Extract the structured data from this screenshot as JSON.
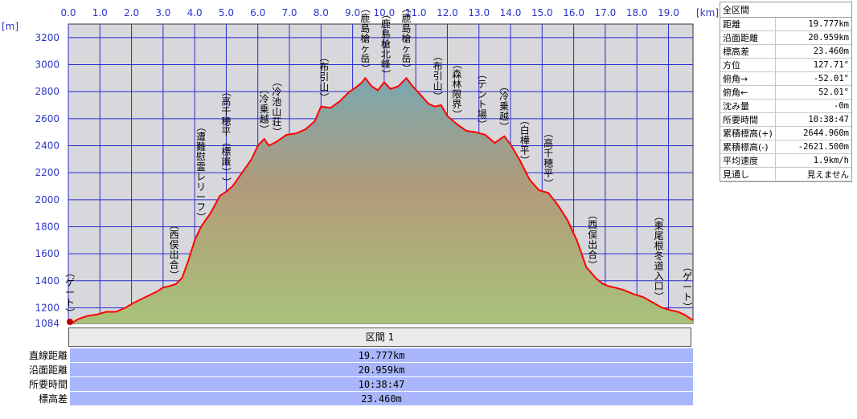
{
  "chart_data": {
    "type": "area",
    "x_unit": "[km]",
    "y_unit": "[m]",
    "xlim": [
      0,
      19.777
    ],
    "ylim": [
      1084,
      3300
    ],
    "x_ticks": [
      "0.0",
      "1.0",
      "2.0",
      "3.0",
      "4.0",
      "5.0",
      "6.0",
      "7.0",
      "8.0",
      "9.0",
      "10.0",
      "11.0",
      "12.0",
      "13.0",
      "14.0",
      "15.0",
      "16.0",
      "17.0",
      "18.0",
      "19.0"
    ],
    "y_ticks": [
      "1084",
      "1200",
      "1400",
      "1600",
      "1800",
      "2000",
      "2200",
      "2400",
      "2600",
      "2800",
      "3000",
      "3200"
    ],
    "profile": [
      [
        0.0,
        1100
      ],
      [
        0.1,
        1084
      ],
      [
        0.3,
        1115
      ],
      [
        0.6,
        1140
      ],
      [
        0.9,
        1150
      ],
      [
        1.2,
        1170
      ],
      [
        1.5,
        1170
      ],
      [
        1.8,
        1200
      ],
      [
        2.1,
        1240
      ],
      [
        2.4,
        1275
      ],
      [
        2.8,
        1320
      ],
      [
        3.0,
        1350
      ],
      [
        3.2,
        1360
      ],
      [
        3.4,
        1375
      ],
      [
        3.6,
        1420
      ],
      [
        3.8,
        1550
      ],
      [
        4.0,
        1700
      ],
      [
        4.2,
        1800
      ],
      [
        4.5,
        1900
      ],
      [
        4.8,
        2030
      ],
      [
        5.0,
        2060
      ],
      [
        5.2,
        2100
      ],
      [
        5.5,
        2200
      ],
      [
        5.8,
        2300
      ],
      [
        6.0,
        2400
      ],
      [
        6.2,
        2450
      ],
      [
        6.35,
        2400
      ],
      [
        6.6,
        2430
      ],
      [
        6.9,
        2480
      ],
      [
        7.2,
        2490
      ],
      [
        7.5,
        2520
      ],
      [
        7.8,
        2580
      ],
      [
        8.0,
        2690
      ],
      [
        8.3,
        2680
      ],
      [
        8.6,
        2730
      ],
      [
        8.9,
        2800
      ],
      [
        9.1,
        2830
      ],
      [
        9.3,
        2870
      ],
      [
        9.4,
        2900
      ],
      [
        9.6,
        2840
      ],
      [
        9.8,
        2810
      ],
      [
        10.0,
        2870
      ],
      [
        10.2,
        2820
      ],
      [
        10.45,
        2840
      ],
      [
        10.7,
        2900
      ],
      [
        10.9,
        2840
      ],
      [
        11.1,
        2790
      ],
      [
        11.4,
        2710
      ],
      [
        11.6,
        2690
      ],
      [
        11.8,
        2700
      ],
      [
        12.0,
        2620
      ],
      [
        12.3,
        2560
      ],
      [
        12.6,
        2510
      ],
      [
        12.9,
        2500
      ],
      [
        13.2,
        2480
      ],
      [
        13.5,
        2420
      ],
      [
        13.8,
        2470
      ],
      [
        14.0,
        2410
      ],
      [
        14.3,
        2290
      ],
      [
        14.6,
        2150
      ],
      [
        14.9,
        2070
      ],
      [
        15.2,
        2050
      ],
      [
        15.5,
        1960
      ],
      [
        15.8,
        1850
      ],
      [
        16.1,
        1700
      ],
      [
        16.4,
        1500
      ],
      [
        16.7,
        1420
      ],
      [
        16.9,
        1380
      ],
      [
        17.1,
        1360
      ],
      [
        17.3,
        1350
      ],
      [
        17.6,
        1330
      ],
      [
        17.9,
        1300
      ],
      [
        18.2,
        1280
      ],
      [
        18.5,
        1240
      ],
      [
        18.8,
        1200
      ],
      [
        19.1,
        1180
      ],
      [
        19.3,
        1170
      ],
      [
        19.5,
        1150
      ],
      [
        19.777,
        1108
      ]
    ],
    "annotations": [
      {
        "label": "ゲート",
        "x": 0.05
      },
      {
        "label": "西俣出合",
        "x": 3.35
      },
      {
        "label": "遭難慰霊レリーフ",
        "x": 4.2
      },
      {
        "label": "高千穂平（標識）",
        "x": 5.0
      },
      {
        "label": "冷乗越",
        "x": 6.2
      },
      {
        "label": "冷池山荘",
        "x": 6.6
      },
      {
        "label": "布引山",
        "x": 8.1
      },
      {
        "label": "鹿島槍ヶ岳",
        "x": 9.4
      },
      {
        "label": "鹿島槍北峰",
        "x": 10.05
      },
      {
        "label": "鹿島槍ヶ岳",
        "x": 10.7
      },
      {
        "label": "布引山",
        "x": 11.7
      },
      {
        "label": "森林限界",
        "x": 12.3
      },
      {
        "label": "テント場",
        "x": 13.1
      },
      {
        "label": "冷乗越",
        "x": 13.8
      },
      {
        "label": "白樺平",
        "x": 14.45
      },
      {
        "label": "高千穂平",
        "x": 15.2
      },
      {
        "label": "西俣出合",
        "x": 16.6
      },
      {
        "label": "東尾根冬道入口",
        "x": 18.7
      },
      {
        "label": "ゲート",
        "x": 19.6
      }
    ],
    "colors": {
      "line": "#ff0000",
      "grid": "#2a2ad0",
      "plot_bg": "#d8d8dc",
      "fill_top": "#78a4a8",
      "fill_mid": "#b49a78",
      "fill_bottom": "#a6c07a"
    }
  },
  "stats": {
    "title": "全区間",
    "rows": [
      {
        "k": "距離",
        "v": "19.777km"
      },
      {
        "k": "沿面距離",
        "v": "20.959km"
      },
      {
        "k": "標高差",
        "v": "23.460m"
      },
      {
        "k": "方位",
        "v": "127.71°"
      },
      {
        "k": "俯角→",
        "v": "-52.01°"
      },
      {
        "k": "俯角←",
        "v": "52.01°"
      },
      {
        "k": "沈み量",
        "v": "-0m"
      },
      {
        "k": "所要時間",
        "v": "10:38:47"
      },
      {
        "k": "累積標高(+)",
        "v": "2644.960m"
      },
      {
        "k": "累積標高(-)",
        "v": "-2621.500m"
      },
      {
        "k": "平均速度",
        "v": "1.9km/h"
      },
      {
        "k": "見通し",
        "v": "見えません"
      }
    ]
  },
  "section": {
    "label": "区間 1",
    "rows": [
      {
        "k": "直線距離",
        "v": "19.777km"
      },
      {
        "k": "沿面距離",
        "v": "20.959km"
      },
      {
        "k": "所要時間",
        "v": "10:38:47"
      },
      {
        "k": "標高差",
        "v": "23.460m"
      }
    ]
  }
}
